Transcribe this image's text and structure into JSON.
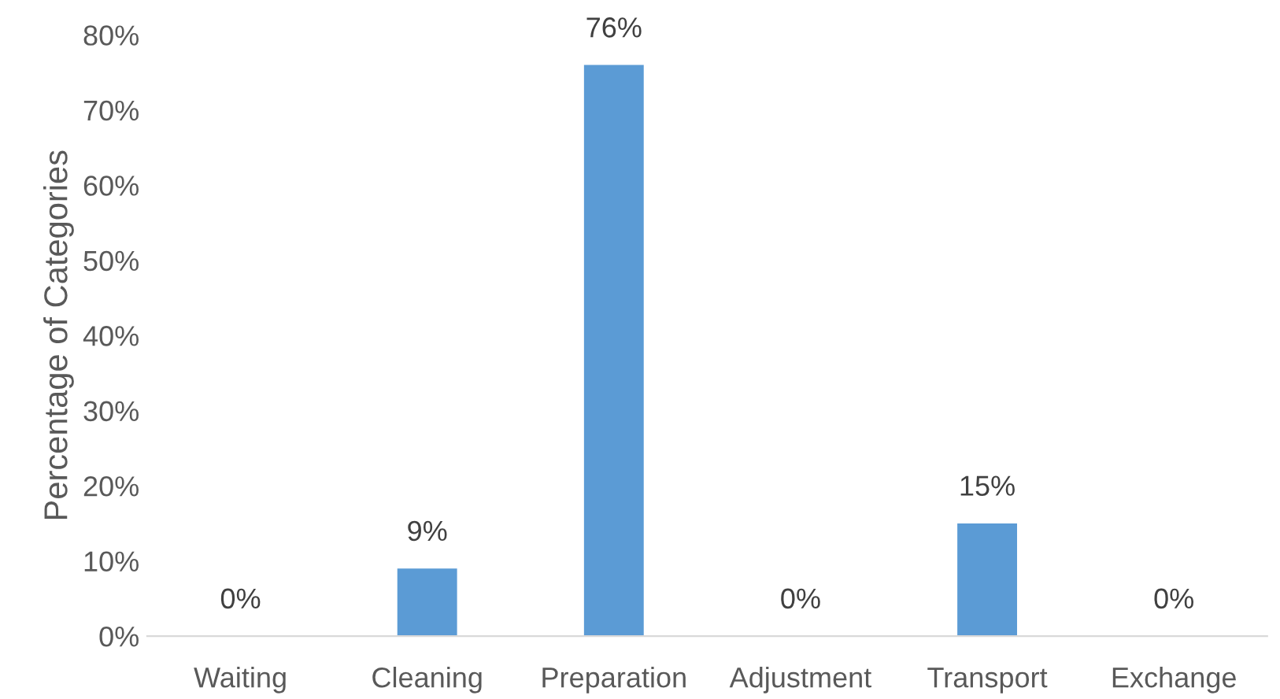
{
  "chart_data": {
    "type": "bar",
    "ylabel": "Percentage of Categories",
    "categories": [
      "Waiting",
      "Cleaning",
      "Preparation",
      "Adjustment",
      "Transport",
      "Exchange"
    ],
    "values": [
      0,
      9,
      76,
      0,
      15,
      0
    ],
    "color": "#5b9bd5",
    "value_labels": [
      "0%",
      "9%",
      "76%",
      "0%",
      "15%",
      "0%"
    ],
    "ylim": [
      0,
      80
    ],
    "yticks": [
      {
        "value": 0,
        "label": "0%"
      },
      {
        "value": 10,
        "label": "10%"
      },
      {
        "value": 20,
        "label": "20%"
      },
      {
        "value": 30,
        "label": "30%"
      },
      {
        "value": 40,
        "label": "40%"
      },
      {
        "value": 50,
        "label": "50%"
      },
      {
        "value": 60,
        "label": "60%"
      },
      {
        "value": 70,
        "label": "70%"
      },
      {
        "value": 80,
        "label": "80%"
      }
    ],
    "grid": false,
    "legend": false
  }
}
